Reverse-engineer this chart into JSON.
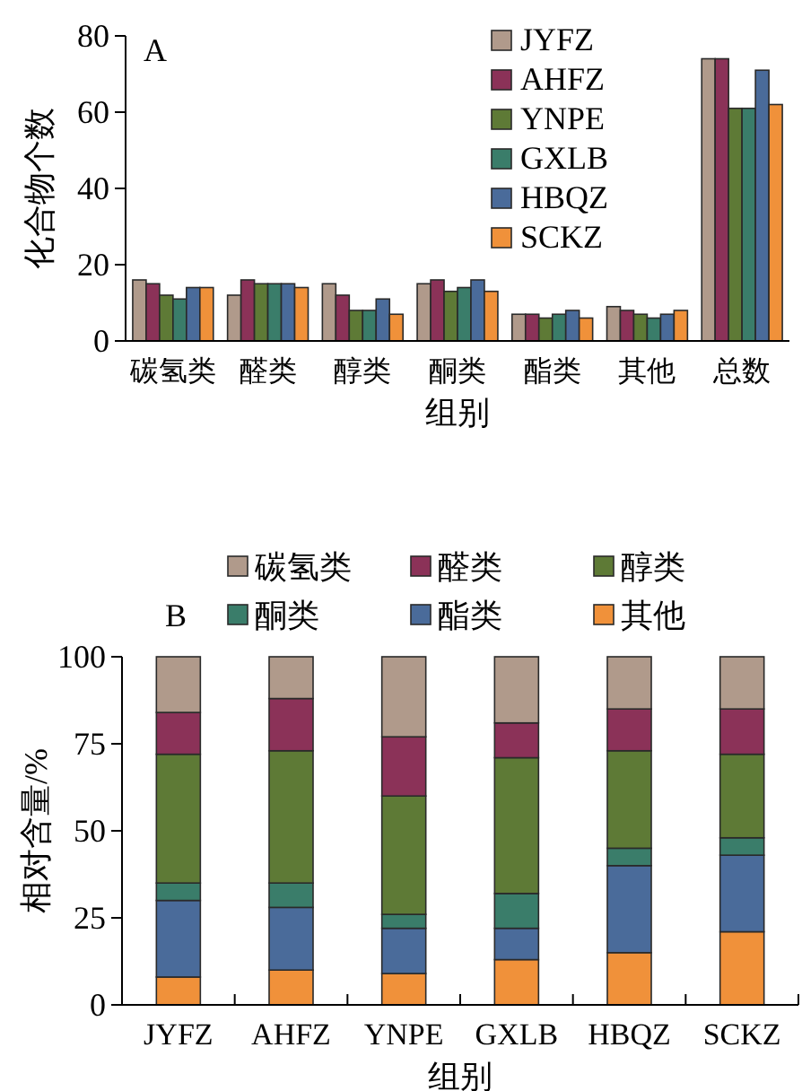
{
  "chart_data": [
    {
      "type": "bar",
      "title": "A",
      "xlabel": "组别",
      "ylabel": "化合物个数",
      "categories": [
        "碳氢类",
        "醛类",
        "醇类",
        "酮类",
        "酯类",
        "其他",
        "总数"
      ],
      "ylim": [
        0,
        80
      ],
      "yticks": [
        0,
        20,
        40,
        60,
        80
      ],
      "legend": "top right",
      "grid": false,
      "series": [
        {
          "name": "JYFZ",
          "color": "#b09a8b",
          "values": [
            16,
            12,
            15,
            15,
            7,
            9,
            74
          ]
        },
        {
          "name": "AHFZ",
          "color": "#8b3258",
          "values": [
            15,
            16,
            12,
            16,
            7,
            8,
            74
          ]
        },
        {
          "name": "YNPE",
          "color": "#5e7a36",
          "values": [
            12,
            15,
            8,
            13,
            6,
            7,
            61
          ]
        },
        {
          "name": "GXLB",
          "color": "#3a7d6a",
          "values": [
            11,
            15,
            8,
            14,
            7,
            6,
            61
          ]
        },
        {
          "name": "HBQZ",
          "color": "#4a6b9a",
          "values": [
            14,
            15,
            11,
            16,
            8,
            7,
            71
          ]
        },
        {
          "name": "SCKZ",
          "color": "#f0913a",
          "values": [
            14,
            14,
            7,
            13,
            6,
            8,
            62
          ]
        }
      ]
    },
    {
      "type": "bar",
      "stacked": true,
      "title": "B",
      "xlabel": "组别",
      "ylabel": "相对含量/%",
      "categories": [
        "JYFZ",
        "AHFZ",
        "YNPE",
        "GXLB",
        "HBQZ",
        "SCKZ"
      ],
      "ylim": [
        0,
        100
      ],
      "yticks": [
        0,
        25,
        50,
        75,
        100
      ],
      "legend": "top",
      "grid": false,
      "series": [
        {
          "name": "其他",
          "color": "#f0913a",
          "values": [
            8,
            10,
            9,
            13,
            15,
            21
          ]
        },
        {
          "name": "酯类",
          "color": "#4a6b9a",
          "values": [
            22,
            18,
            13,
            9,
            25,
            22
          ]
        },
        {
          "name": "酮类",
          "color": "#3a7d6a",
          "values": [
            5,
            7,
            4,
            10,
            5,
            5
          ]
        },
        {
          "name": "醇类",
          "color": "#5e7a36",
          "values": [
            37,
            38,
            34,
            39,
            28,
            24
          ]
        },
        {
          "name": "醛类",
          "color": "#8b3258",
          "values": [
            12,
            15,
            17,
            10,
            12,
            13
          ]
        },
        {
          "name": "碳氢类",
          "color": "#b09a8b",
          "values": [
            16,
            12,
            23,
            19,
            15,
            15
          ]
        }
      ]
    }
  ]
}
